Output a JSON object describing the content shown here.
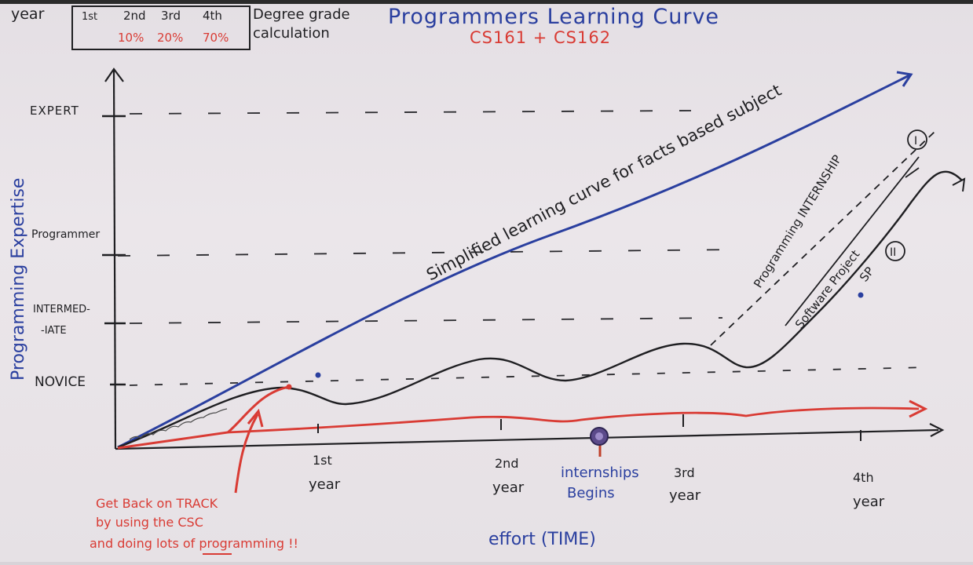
{
  "title": "Programmers Learning Curve",
  "subtitle": "CS161 + CS162",
  "colors": {
    "ink": "#1f1f22",
    "blue": "#2a3f9f",
    "red": "#d93b34",
    "board": "#e8e3e7",
    "purple": "#4a3b7a"
  },
  "degree_table": {
    "row_label": "year",
    "years": [
      "1st",
      "2nd",
      "3rd",
      "4th"
    ],
    "weights": [
      "10%",
      "20%",
      "70%"
    ],
    "caption_line1": "Degree grade",
    "caption_line2": "calculation"
  },
  "y_axis": {
    "label": "Programming Expertise",
    "levels": [
      "EXPERT",
      "Programmer",
      "INTERMED-",
      "-IATE",
      "NOVICE"
    ]
  },
  "x_axis": {
    "label": "effort (TIME)",
    "years": [
      {
        "line1": "1st",
        "line2": "year"
      },
      {
        "line1": "2nd",
        "line2": "year"
      },
      {
        "line1": "3rd",
        "line2": "year"
      },
      {
        "line1": "4th",
        "line2": "year"
      }
    ]
  },
  "annotations": {
    "simplified": "Simplified learning curve for facts based subject",
    "programming_internship": "Programming INTERNSHIP",
    "software_project": "Software Project",
    "sp": "SP",
    "roman_1": "I",
    "roman_2": "II",
    "internships_line1": "internships",
    "internships_line2": "Begins",
    "get_back_line1": "Get Back on TRACK",
    "get_back_line2": "by using the CSC",
    "get_back_line3": "and doing lots of programming !!"
  }
}
